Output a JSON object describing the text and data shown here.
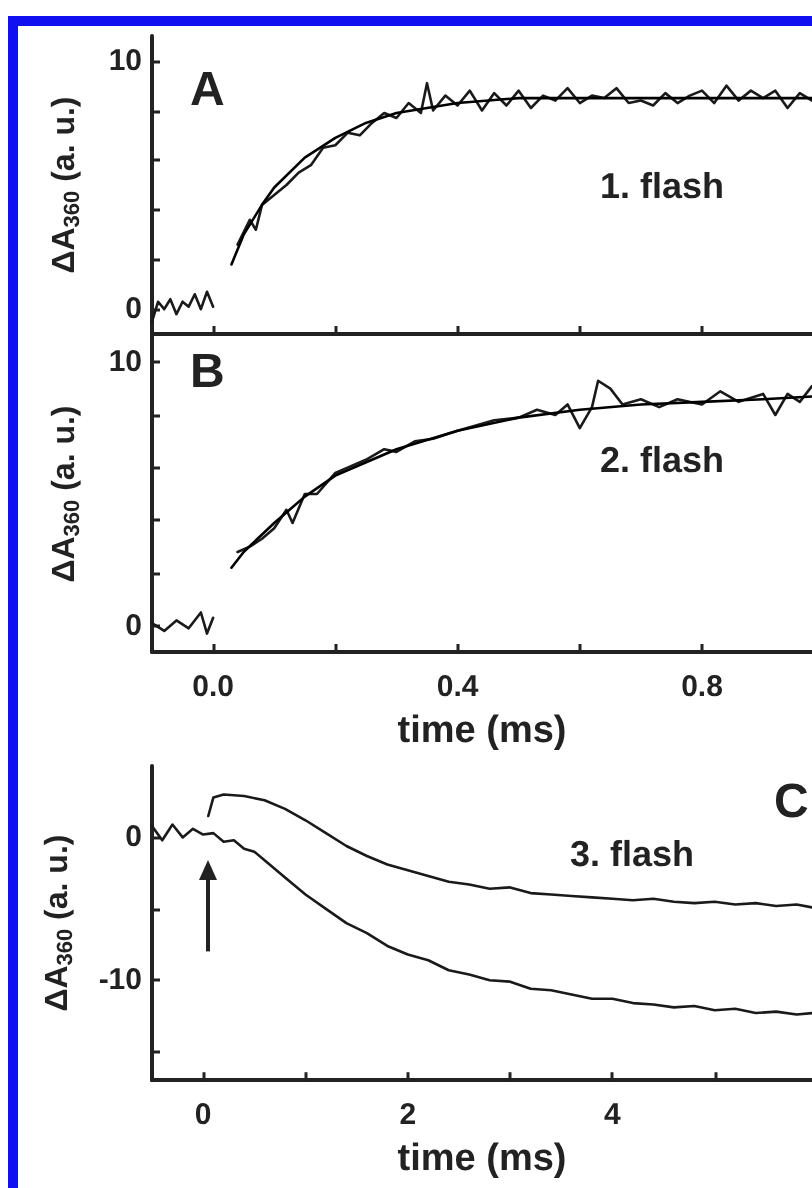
{
  "chart_data": [
    {
      "type": "line",
      "title": "A",
      "ylabel": "ΔA$_{360}$ (a. u.)",
      "annotations": [
        "1. flash"
      ],
      "tick_labels": "y",
      "xlim": [
        -0.1,
        0.98
      ],
      "ylim": [
        -1,
        11
      ],
      "xticks": [
        {
          "value": 0,
          "label": null
        },
        {
          "value": 0.2,
          "label": null
        },
        {
          "value": 0.4,
          "label": null
        },
        {
          "value": 0.6,
          "label": null
        },
        {
          "value": 0.8,
          "label": null
        }
      ],
      "yticks": [
        0,
        {
          "value": 2,
          "label": null
        },
        {
          "value": 4,
          "label": null
        },
        {
          "value": 6,
          "label": null
        },
        {
          "value": 8,
          "label": null
        },
        10
      ],
      "series": [
        {
          "color": "#1a1a1a",
          "x": [
            -0.1,
            -0.09,
            -0.08,
            -0.07,
            -0.06,
            -0.05,
            -0.04,
            -0.03,
            -0.02,
            -0.01,
            0
          ],
          "values": [
            -0.5,
            0.3,
            0,
            0.4,
            -0.2,
            0.3,
            0.1,
            0.6,
            0,
            0.7,
            0.1
          ]
        },
        {
          "color": "#1a1a1a",
          "x": [
            0.04,
            0.06,
            0.07,
            0.08,
            0.1,
            0.12,
            0.14,
            0.16,
            0.18,
            0.2,
            0.22,
            0.24,
            0.26,
            0.28,
            0.3,
            0.32,
            0.34,
            0.35,
            0.36,
            0.38,
            0.4,
            0.42,
            0.44,
            0.46,
            0.48,
            0.5,
            0.52,
            0.54,
            0.56,
            0.58,
            0.6,
            0.62,
            0.64,
            0.66,
            0.68,
            0.7,
            0.72,
            0.74,
            0.76,
            0.78,
            0.8,
            0.82,
            0.84,
            0.86,
            0.88,
            0.9,
            0.92,
            0.94,
            0.96,
            0.98
          ],
          "values": [
            2.6,
            3.6,
            3.2,
            4.2,
            4.6,
            5.0,
            5.5,
            5.8,
            6.5,
            6.6,
            7.1,
            7.0,
            7.5,
            7.9,
            7.7,
            8.3,
            7.9,
            9.1,
            8.0,
            8.6,
            8.2,
            8.8,
            8.0,
            8.7,
            8.2,
            8.8,
            8.1,
            8.6,
            8.4,
            8.9,
            8.3,
            8.6,
            8.5,
            8.9,
            8.3,
            8.4,
            8.2,
            8.7,
            8.3,
            8.6,
            8.8,
            8.3,
            9.0,
            8.4,
            8.8,
            8.5,
            8.8,
            8.1,
            8.7,
            8.4
          ]
        },
        {
          "color": "#000000",
          "x": [
            0.03,
            0.05,
            0.08,
            0.1,
            0.15,
            0.2,
            0.25,
            0.3,
            0.4,
            0.5,
            0.6,
            0.8,
            0.98
          ],
          "values": [
            1.8,
            3.0,
            4.2,
            4.9,
            6.1,
            6.9,
            7.5,
            7.9,
            8.3,
            8.5,
            8.5,
            8.5,
            8.5
          ]
        }
      ]
    },
    {
      "type": "line",
      "title": "B",
      "xlabel": "time (ms)",
      "ylabel": "ΔA$_{360}$ (a. u.)",
      "annotations": [
        "2. flash"
      ],
      "xlim": [
        -0.1,
        0.98
      ],
      "ylim": [
        -1,
        11
      ],
      "xticks": [
        {
          "value": 0,
          "label": "0.0"
        },
        {
          "value": 0.2,
          "label": null
        },
        0.4,
        {
          "value": 0.6,
          "label": null
        },
        0.8
      ],
      "yticks": [
        0,
        {
          "value": 2,
          "label": null
        },
        {
          "value": 4,
          "label": null
        },
        {
          "value": 6,
          "label": null
        },
        {
          "value": 8,
          "label": null
        },
        10
      ],
      "series": [
        {
          "color": "#1a1a1a",
          "x": [
            -0.1,
            -0.08,
            -0.06,
            -0.04,
            -0.02,
            -0.01,
            0
          ],
          "values": [
            0.1,
            -0.2,
            0.2,
            -0.1,
            0.5,
            -0.3,
            0.3
          ]
        },
        {
          "color": "#1a1a1a",
          "x": [
            0.04,
            0.06,
            0.08,
            0.1,
            0.12,
            0.13,
            0.15,
            0.17,
            0.2,
            0.22,
            0.25,
            0.28,
            0.3,
            0.33,
            0.36,
            0.4,
            0.43,
            0.46,
            0.5,
            0.53,
            0.56,
            0.58,
            0.6,
            0.62,
            0.63,
            0.65,
            0.67,
            0.7,
            0.73,
            0.76,
            0.8,
            0.83,
            0.86,
            0.9,
            0.92,
            0.94,
            0.96,
            0.98
          ],
          "values": [
            2.8,
            3.0,
            3.3,
            3.7,
            4.4,
            3.9,
            5.0,
            5.0,
            5.8,
            6.0,
            6.3,
            6.7,
            6.6,
            7.0,
            7.1,
            7.4,
            7.6,
            7.8,
            7.9,
            8.2,
            8.0,
            8.4,
            7.5,
            8.3,
            9.3,
            9.0,
            8.4,
            8.6,
            8.3,
            8.6,
            8.4,
            8.9,
            8.5,
            8.8,
            8.0,
            8.8,
            8.5,
            9.1
          ]
        },
        {
          "color": "#000000",
          "x": [
            0.03,
            0.05,
            0.1,
            0.15,
            0.2,
            0.3,
            0.4,
            0.5,
            0.6,
            0.7,
            0.8,
            0.9,
            0.98
          ],
          "values": [
            2.2,
            2.8,
            3.9,
            4.9,
            5.7,
            6.7,
            7.4,
            7.9,
            8.2,
            8.4,
            8.5,
            8.6,
            8.7
          ]
        }
      ]
    },
    {
      "type": "line",
      "title": "C",
      "xlabel": "time (ms)",
      "ylabel": "ΔA$_{360}$ (a. u.)",
      "annotations": [
        "3. flash"
      ],
      "xlim": [
        -0.5,
        5.95
      ],
      "ylim": [
        -17,
        5
      ],
      "xticks": [
        0,
        {
          "value": 1,
          "label": null
        },
        2,
        {
          "value": 3,
          "label": null
        },
        4,
        {
          "value": 5,
          "label": null
        }
      ],
      "yticks": [
        {
          "value": -15,
          "label": null
        },
        -10,
        {
          "value": -5,
          "label": null
        },
        0
      ],
      "series": [
        {
          "color": "#1a1a1a",
          "x": [
            -0.5,
            -0.4,
            -0.3,
            -0.2,
            -0.1,
            0,
            0.1,
            0.2,
            0.3,
            0.4,
            0.5,
            0.6,
            0.8,
            1.0,
            1.2,
            1.4,
            1.6,
            1.8,
            2.0,
            2.2,
            2.4,
            2.6,
            2.8,
            3.0,
            3.2,
            3.4,
            3.6,
            3.8,
            4.0,
            4.2,
            4.4,
            4.6,
            4.8,
            5.0,
            5.2,
            5.4,
            5.6,
            5.8,
            5.95
          ],
          "values": [
            0.8,
            -0.2,
            0.9,
            0,
            0.6,
            0.2,
            0.3,
            -0.3,
            -0.2,
            -0.8,
            -1.0,
            -1.6,
            -2.8,
            -4.0,
            -5.0,
            -6.0,
            -6.7,
            -7.6,
            -8.2,
            -8.6,
            -9.3,
            -9.6,
            -10.0,
            -10.1,
            -10.6,
            -10.7,
            -11.0,
            -11.3,
            -11.3,
            -11.6,
            -11.7,
            -11.9,
            -11.8,
            -12.1,
            -12.0,
            -12.3,
            -12.2,
            -12.4,
            -12.3
          ]
        },
        {
          "color": "#1a1a1a",
          "x": [
            0.05,
            0.1,
            0.2,
            0.4,
            0.6,
            0.8,
            1.0,
            1.2,
            1.4,
            1.6,
            1.8,
            2.0,
            2.2,
            2.4,
            2.6,
            2.8,
            3.0,
            3.2,
            3.4,
            3.6,
            3.8,
            4.0,
            4.2,
            4.4,
            4.6,
            4.8,
            5.0,
            5.2,
            5.4,
            5.6,
            5.8,
            5.95
          ],
          "values": [
            1.5,
            2.8,
            3.0,
            2.9,
            2.6,
            2.0,
            1.2,
            0.3,
            -0.6,
            -1.3,
            -1.9,
            -2.3,
            -2.7,
            -3.1,
            -3.3,
            -3.6,
            -3.5,
            -3.9,
            -4.0,
            -4.1,
            -4.2,
            -4.3,
            -4.4,
            -4.3,
            -4.5,
            -4.6,
            -4.5,
            -4.7,
            -4.6,
            -4.8,
            -4.7,
            -4.9
          ]
        }
      ]
    }
  ]
}
